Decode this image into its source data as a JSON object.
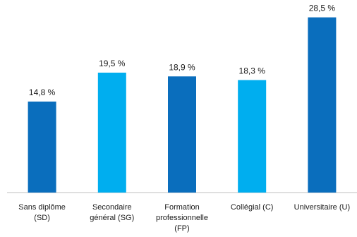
{
  "chart_data": {
    "type": "bar",
    "title": "",
    "categories": [
      [
        "Sans diplôme",
        "(SD)"
      ],
      [
        "Secondaire",
        "général (SG)"
      ],
      [
        "Formation",
        "professionnelle",
        "(FP)"
      ],
      [
        "Collégial (C)"
      ],
      [
        "Universitaire (U)"
      ]
    ],
    "values": [
      14.8,
      19.5,
      18.9,
      18.3,
      28.5
    ],
    "value_labels": [
      "14,8 %",
      "19,5 %",
      "18,9 %",
      "18,3 %",
      "28,5 %"
    ],
    "ylim": [
      0,
      30
    ],
    "grid": false,
    "legend": "none",
    "colors": [
      "#0a6ebd",
      "#00aeef",
      "#0a6ebd",
      "#00aeef",
      "#0a6ebd"
    ],
    "title_color": "#1f6ebf",
    "axis_color": "#bfbfbf"
  }
}
